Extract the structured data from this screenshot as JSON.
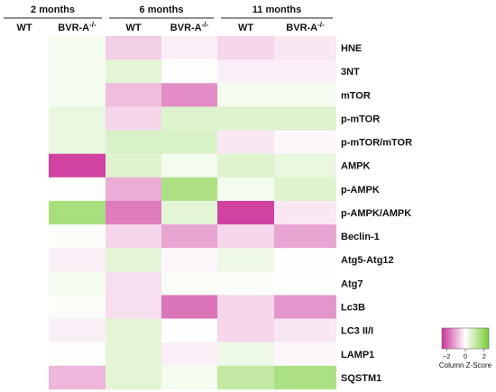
{
  "chart_data": {
    "type": "heatmap",
    "group_labels": [
      "2 months",
      "6 months",
      "11 months"
    ],
    "columns": [
      "WT",
      "BVR-A-/-",
      "WT",
      "BVR-A-/-",
      "WT",
      "BVR-A-/-"
    ],
    "column_groups": [
      0,
      0,
      1,
      1,
      2,
      2
    ],
    "rows": [
      "HNE",
      "3NT",
      "mTOR",
      "p-mTOR",
      "p-mTOR/mTOR",
      "AMPK",
      "p-AMPK",
      "p-AMPK/AMPK",
      "Beclin-1",
      "Atg5-Atg12",
      "Atg7",
      "Lc3B",
      "LC3 II/I",
      "LAMP1",
      "SQSTM1"
    ],
    "values": [
      [
        0.0,
        0.2,
        -0.6,
        -0.2,
        -0.5,
        -0.3
      ],
      [
        0.0,
        0.2,
        0.5,
        0.05,
        -0.2,
        -0.2
      ],
      [
        0.0,
        0.2,
        -0.8,
        -1.4,
        0.2,
        0.2
      ],
      [
        0.0,
        0.4,
        -0.5,
        0.6,
        0.6,
        0.6
      ],
      [
        0.0,
        0.4,
        0.7,
        0.7,
        -0.3,
        -0.1
      ],
      [
        0.0,
        -2.3,
        0.6,
        0.2,
        0.6,
        0.4
      ],
      [
        0.0,
        0.05,
        -1.0,
        1.5,
        0.2,
        0.6
      ],
      [
        0.0,
        1.6,
        -1.6,
        0.5,
        -2.3,
        -0.3
      ],
      [
        0.0,
        0.1,
        -0.5,
        -1.1,
        -0.5,
        -1.1
      ],
      [
        0.0,
        -0.2,
        0.5,
        -0.1,
        0.3,
        0.05
      ],
      [
        0.0,
        0.2,
        -0.4,
        0.1,
        0.1,
        0.05
      ],
      [
        0.0,
        0.1,
        -0.4,
        -1.7,
        -0.5,
        -1.3
      ],
      [
        0.0,
        -0.2,
        0.5,
        0.05,
        -0.5,
        -0.3
      ],
      [
        0.0,
        0.05,
        0.5,
        -0.2,
        0.3,
        -0.1
      ],
      [
        0.0,
        -0.9,
        0.5,
        0.2,
        1.1,
        1.5
      ]
    ],
    "color_scale": {
      "low": "#cc3399",
      "mid": "#ffffff",
      "high": "#77cc33",
      "min": -2.5,
      "max": 2.5
    },
    "color_key": {
      "label": "Column Z-Score",
      "ticks": [
        "−2",
        "0",
        "2"
      ],
      "tick_values": [
        -2,
        0,
        2
      ]
    }
  }
}
